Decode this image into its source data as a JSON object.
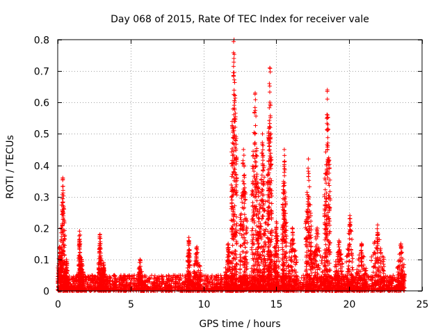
{
  "chart_data": {
    "type": "scatter",
    "title": "Day 068 of 2015, Rate Of TEC Index for receiver vale",
    "xlabel": "GPS time / hours",
    "ylabel": "ROTI / TECUs",
    "xlim": [
      0,
      25
    ],
    "ylim": [
      0,
      0.8
    ],
    "x_ticks": [
      0,
      5,
      10,
      15,
      20,
      25
    ],
    "y_ticks": [
      0,
      0.1,
      0.2,
      0.3,
      0.4,
      0.5,
      0.6,
      0.7,
      0.8
    ],
    "x_tick_labels": [
      "0",
      "5",
      "10",
      "15",
      "20",
      "25"
    ],
    "y_tick_labels": [
      "0",
      "0.1",
      "0.2",
      "0.3",
      "0.4",
      "0.5",
      "0.6",
      "0.7",
      "0.8"
    ],
    "grid": true,
    "marker": "+",
    "marker_color": "#ff0000",
    "series": [
      {
        "name": "ROTI",
        "bursts": [
          {
            "t0": 0.0,
            "t1": 0.25,
            "peak": 0.14
          },
          {
            "t0": 0.2,
            "t1": 0.5,
            "peak": 0.36
          },
          {
            "t0": 0.5,
            "t1": 0.7,
            "peak": 0.1
          },
          {
            "t0": 1.4,
            "t1": 1.6,
            "peak": 0.19
          },
          {
            "t0": 1.5,
            "t1": 1.8,
            "peak": 0.1
          },
          {
            "t0": 2.8,
            "t1": 3.0,
            "peak": 0.18
          },
          {
            "t0": 3.0,
            "t1": 3.3,
            "peak": 0.09
          },
          {
            "t0": 5.5,
            "t1": 5.8,
            "peak": 0.1
          },
          {
            "t0": 8.9,
            "t1": 9.1,
            "peak": 0.17
          },
          {
            "t0": 9.3,
            "t1": 9.8,
            "peak": 0.14
          },
          {
            "t0": 11.5,
            "t1": 11.9,
            "peak": 0.15
          },
          {
            "t0": 11.9,
            "t1": 12.3,
            "peak": 0.8
          },
          {
            "t0": 12.5,
            "t1": 13.0,
            "peak": 0.45
          },
          {
            "t0": 13.3,
            "t1": 13.8,
            "peak": 0.63
          },
          {
            "t0": 13.8,
            "t1": 14.3,
            "peak": 0.5
          },
          {
            "t0": 14.4,
            "t1": 14.7,
            "peak": 0.71
          },
          {
            "t0": 14.8,
            "t1": 15.2,
            "peak": 0.22
          },
          {
            "t0": 15.4,
            "t1": 15.7,
            "peak": 0.45
          },
          {
            "t0": 15.8,
            "t1": 16.4,
            "peak": 0.2
          },
          {
            "t0": 17.0,
            "t1": 17.4,
            "peak": 0.42
          },
          {
            "t0": 17.4,
            "t1": 18.2,
            "peak": 0.2
          },
          {
            "t0": 18.3,
            "t1": 18.7,
            "peak": 0.64
          },
          {
            "t0": 19.0,
            "t1": 19.6,
            "peak": 0.16
          },
          {
            "t0": 19.8,
            "t1": 20.3,
            "peak": 0.24
          },
          {
            "t0": 20.5,
            "t1": 21.2,
            "peak": 0.15
          },
          {
            "t0": 21.5,
            "t1": 22.4,
            "peak": 0.21
          },
          {
            "t0": 23.3,
            "t1": 23.8,
            "peak": 0.15
          }
        ],
        "baseline": {
          "t0": 0.0,
          "t1": 23.8,
          "typical_max": 0.05
        }
      }
    ]
  }
}
